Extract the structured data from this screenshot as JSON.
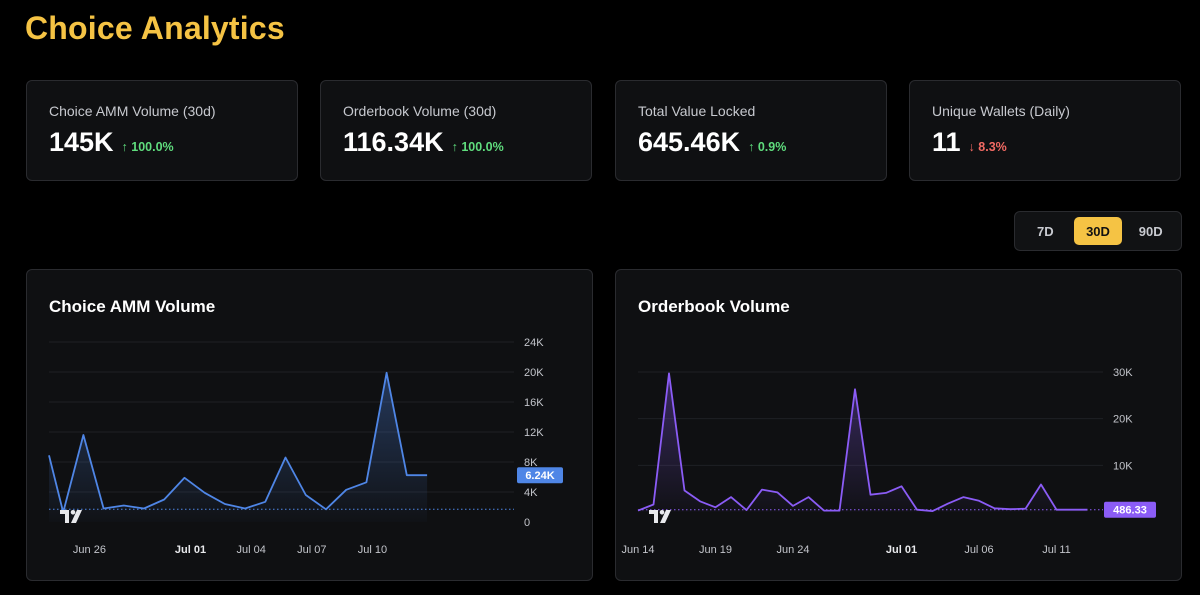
{
  "page": {
    "title": "Choice Analytics"
  },
  "stats": [
    {
      "label": "Choice AMM Volume (30d)",
      "value": "145K",
      "change": "↑ 100.0%",
      "direction": "up"
    },
    {
      "label": "Orderbook Volume (30d)",
      "value": "116.34K",
      "change": "↑ 100.0%",
      "direction": "up"
    },
    {
      "label": "Total Value Locked",
      "value": "645.46K",
      "change": "↑ 0.9%",
      "direction": "up"
    },
    {
      "label": "Unique Wallets (Daily)",
      "value": "11",
      "change": "↓ 8.3%",
      "direction": "down"
    }
  ],
  "range": {
    "options": [
      "7D",
      "30D",
      "90D"
    ],
    "selected": "30D"
  },
  "colors": {
    "accent": "#f5c344",
    "amm": "#4f86e6",
    "orderbook": "#8b5cf6",
    "up": "#5fdc7d",
    "down": "#f26a63"
  },
  "chart_data": [
    {
      "type": "area",
      "title": "Choice AMM Volume",
      "xlabel": "",
      "ylabel": "",
      "ylim": [
        0,
        24000
      ],
      "y_ticks": [
        0,
        4000,
        8000,
        12000,
        16000,
        20000,
        24000
      ],
      "y_tick_labels": [
        "0",
        "4K",
        "8K",
        "12K",
        "16K",
        "20K",
        "24K"
      ],
      "x_range": [
        0,
        23
      ],
      "x_ticks": [
        {
          "x": 2,
          "label": "Jun 26",
          "bold": false
        },
        {
          "x": 7,
          "label": "Jul 01",
          "bold": true
        },
        {
          "x": 10,
          "label": "Jul 04",
          "bold": false
        },
        {
          "x": 13,
          "label": "Jul 07",
          "bold": false
        },
        {
          "x": 16,
          "label": "Jul 10",
          "bold": false
        }
      ],
      "series": [
        {
          "name": "Choice AMM Volume",
          "x": [
            -0.2,
            0.7,
            1.7,
            2.7,
            3.7,
            4.7,
            5.7,
            6.7,
            7.7,
            8.7,
            9.7,
            10.7,
            11.7,
            12.7,
            13.7,
            14.7,
            15.7,
            16.7,
            17.7,
            18.7
          ],
          "values": [
            8900,
            1300,
            11600,
            1800,
            2200,
            1800,
            3000,
            5900,
            3900,
            2400,
            1800,
            2700,
            8600,
            3600,
            1700,
            4300,
            5300,
            19900,
            6240,
            6240
          ]
        }
      ],
      "baseline": 1700,
      "last_value_label": "6.24K"
    },
    {
      "type": "area",
      "title": "Orderbook Volume",
      "xlabel": "",
      "ylabel": "",
      "ylim": [
        0,
        30000
      ],
      "y_ticks": [
        10000,
        20000,
        30000
      ],
      "y_tick_labels": [
        "10K",
        "20K",
        "30K"
      ],
      "x_range": [
        0,
        30
      ],
      "x_ticks": [
        {
          "x": 0,
          "label": "Jun 14",
          "bold": false
        },
        {
          "x": 5,
          "label": "Jun 19",
          "bold": false
        },
        {
          "x": 10,
          "label": "Jun 24",
          "bold": false
        },
        {
          "x": 17,
          "label": "Jul 01",
          "bold": true
        },
        {
          "x": 22,
          "label": "Jul 06",
          "bold": false
        },
        {
          "x": 27,
          "label": "Jul 11",
          "bold": false
        }
      ],
      "series": [
        {
          "name": "Orderbook Volume",
          "x": [
            0,
            1,
            2,
            3,
            4,
            5,
            6,
            7,
            8,
            9,
            10,
            11,
            12,
            13,
            14,
            15,
            16,
            17,
            18,
            19,
            20,
            21,
            22,
            23,
            24,
            25,
            26,
            27,
            28,
            29
          ],
          "values": [
            300,
            1600,
            29700,
            4600,
            2300,
            1000,
            3200,
            400,
            4800,
            4200,
            1300,
            3200,
            300,
            300,
            26300,
            3700,
            4100,
            5500,
            500,
            200,
            1800,
            3200,
            2400,
            800,
            600,
            700,
            5900,
            486,
            486,
            486
          ]
        }
      ],
      "baseline": 486,
      "last_value_label": "486.33"
    }
  ]
}
